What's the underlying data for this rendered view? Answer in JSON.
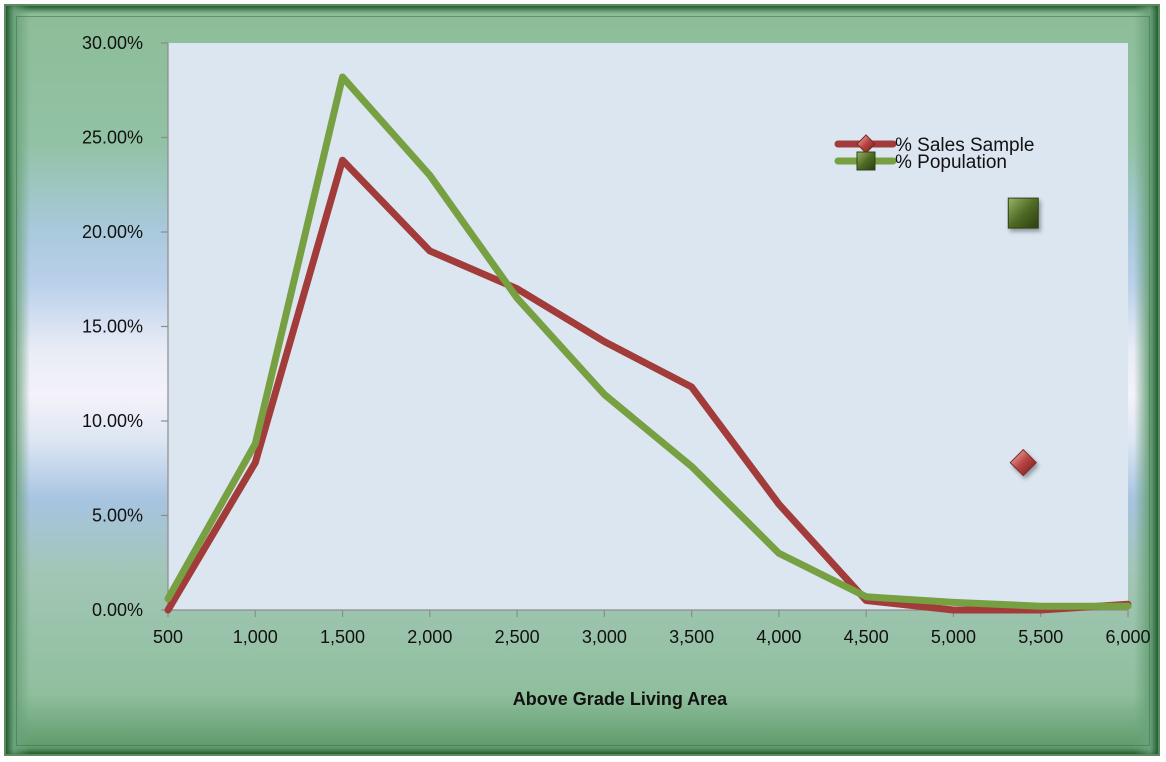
{
  "chart_data": {
    "type": "line",
    "title": "",
    "xlabel": "Above Grade Living Area",
    "ylabel": "",
    "x": [
      500,
      1000,
      1500,
      2000,
      2500,
      3000,
      3500,
      4000,
      4500,
      5000,
      5500,
      6000
    ],
    "x_tick_labels": [
      "500",
      "1,000",
      "1,500",
      "2,000",
      "2,500",
      "3,000",
      "3,500",
      "4,000",
      "4,500",
      "5,000",
      "5,500",
      "6,000"
    ],
    "y_tick_labels": [
      "0.00%",
      "5.00%",
      "10.00%",
      "15.00%",
      "20.00%",
      "25.00%",
      "30.00%"
    ],
    "ylim": [
      0,
      0.3
    ],
    "xlim": [
      500,
      6000
    ],
    "grid": false,
    "legend_position": "top-right",
    "series": [
      {
        "name": "% Sales Sample",
        "color": "#a23c3a",
        "marker": "diamond",
        "values": [
          0.0,
          0.078,
          0.238,
          0.19,
          0.17,
          0.142,
          0.118,
          0.056,
          0.005,
          0.0,
          0.0,
          0.003
        ]
      },
      {
        "name": "% Population",
        "color": "#76a041",
        "marker": "square",
        "values": [
          0.006,
          0.088,
          0.282,
          0.23,
          0.165,
          0.114,
          0.076,
          0.03,
          0.007,
          0.004,
          0.002,
          0.002
        ]
      }
    ],
    "stray_markers": [
      {
        "series": 0,
        "x": 5400,
        "y": 0.078
      },
      {
        "series": 1,
        "x": 5400,
        "y": 0.21
      }
    ]
  },
  "colors": {
    "plot_background": "#dce6f1",
    "axis": "#8c8c8c"
  }
}
